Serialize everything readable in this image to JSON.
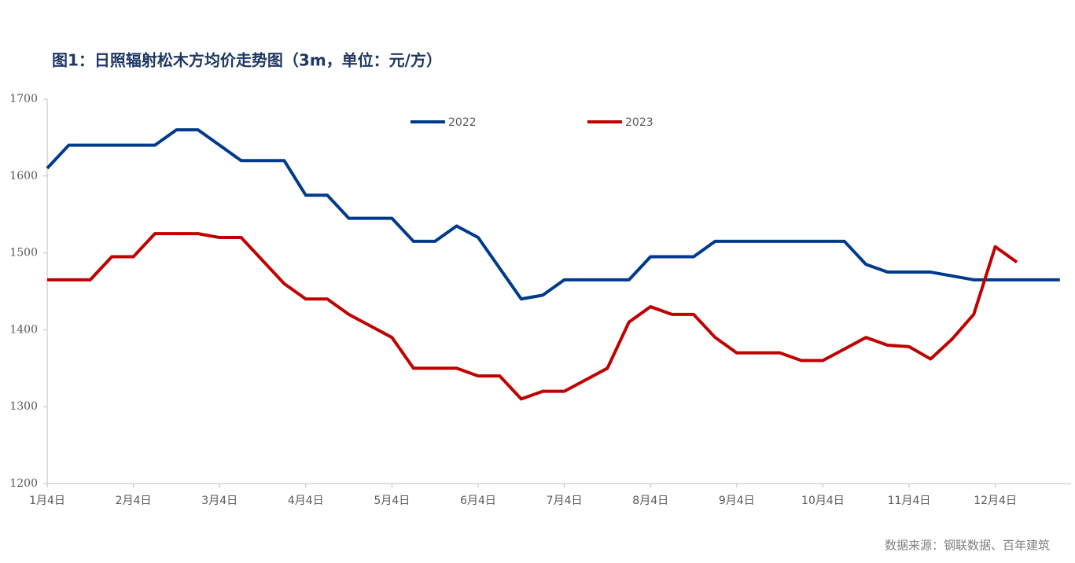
{
  "chart_data": {
    "type": "line",
    "title": "图1：日照辐射松木方均价走势图（3m，单位：元/方）",
    "source": "数据来源：钢联数据、百年建筑",
    "categories": [
      "1月4日",
      null,
      null,
      null,
      "2月4日",
      null,
      null,
      null,
      "3月4日",
      null,
      null,
      null,
      "4月4日",
      null,
      null,
      null,
      "5月4日",
      null,
      null,
      null,
      "6月4日",
      null,
      null,
      null,
      "7月4日",
      null,
      null,
      null,
      "8月4日",
      null,
      null,
      null,
      "9月4日",
      null,
      null,
      null,
      "10月4日",
      null,
      null,
      null,
      "11月4日",
      null,
      null,
      null,
      "12月4日",
      null,
      null,
      null
    ],
    "series": [
      {
        "name": "2022",
        "color": "#003a8c",
        "values": [
          1610,
          1640,
          1640,
          1640,
          1640,
          1640,
          1660,
          1660,
          1640,
          1620,
          1620,
          1620,
          1575,
          1575,
          1545,
          1545,
          1545,
          1515,
          1515,
          1535,
          1520,
          1480,
          1440,
          1445,
          1465,
          1465,
          1465,
          1465,
          1495,
          1495,
          1495,
          1515,
          1515,
          1515,
          1515,
          1515,
          1515,
          1515,
          1485,
          1475,
          1475,
          1475,
          1470,
          1465,
          1465,
          1465,
          1465,
          1465
        ]
      },
      {
        "name": "2023",
        "color": "#c00000",
        "values": [
          1465,
          1465,
          1465,
          1495,
          1495,
          1525,
          1525,
          1525,
          1520,
          1520,
          1490,
          1460,
          1440,
          1440,
          1420,
          1405,
          1390,
          1350,
          1350,
          1350,
          1340,
          1340,
          1310,
          1320,
          1320,
          1335,
          1350,
          1410,
          1430,
          1420,
          1420,
          1390,
          1370,
          1370,
          1370,
          1360,
          1360,
          1375,
          1390,
          1380,
          1378,
          1362,
          1388,
          1420,
          1508,
          1488,
          null,
          null
        ]
      }
    ],
    "ylim": [
      1200,
      1700
    ],
    "yticks": [
      1200,
      1300,
      1400,
      1500,
      1600,
      1700
    ],
    "legend": "top",
    "grid": false
  }
}
